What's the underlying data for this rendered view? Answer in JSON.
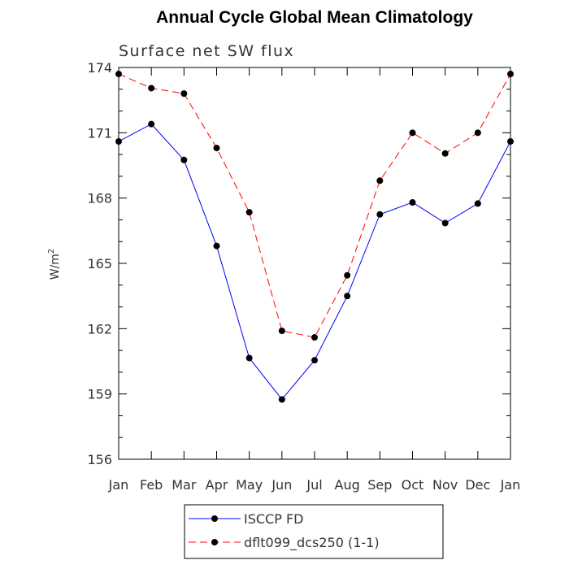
{
  "chart_data": {
    "type": "line",
    "title": "Annual Cycle Global Mean Climatology",
    "subtitle": "Surface net SW flux",
    "ylabel": "W/m",
    "ylabel_superscript": "2",
    "xlabel": "",
    "categories": [
      "Jan",
      "Feb",
      "Mar",
      "Apr",
      "May",
      "Jun",
      "Jul",
      "Aug",
      "Sep",
      "Oct",
      "Nov",
      "Dec",
      "Jan"
    ],
    "ylim": [
      156,
      174
    ],
    "yticks": [
      156,
      159,
      162,
      165,
      168,
      171,
      174
    ],
    "grid": false,
    "legend_position": "bottom",
    "series": [
      {
        "name": "ISCCP FD",
        "color": "#0000ff",
        "dash": "solid",
        "marker": "filled-circle",
        "values": [
          170.6,
          171.4,
          169.75,
          165.8,
          160.65,
          158.75,
          160.55,
          163.5,
          167.25,
          167.8,
          166.85,
          167.75,
          170.6
        ]
      },
      {
        "name": "dflt099_dcs250 (1-1)",
        "color": "#ff0000",
        "dash": "dashed",
        "marker": "filled-circle",
        "values": [
          173.7,
          173.05,
          172.8,
          170.3,
          167.35,
          161.9,
          161.6,
          164.45,
          168.8,
          171.0,
          170.05,
          171.0,
          173.7
        ]
      }
    ]
  }
}
